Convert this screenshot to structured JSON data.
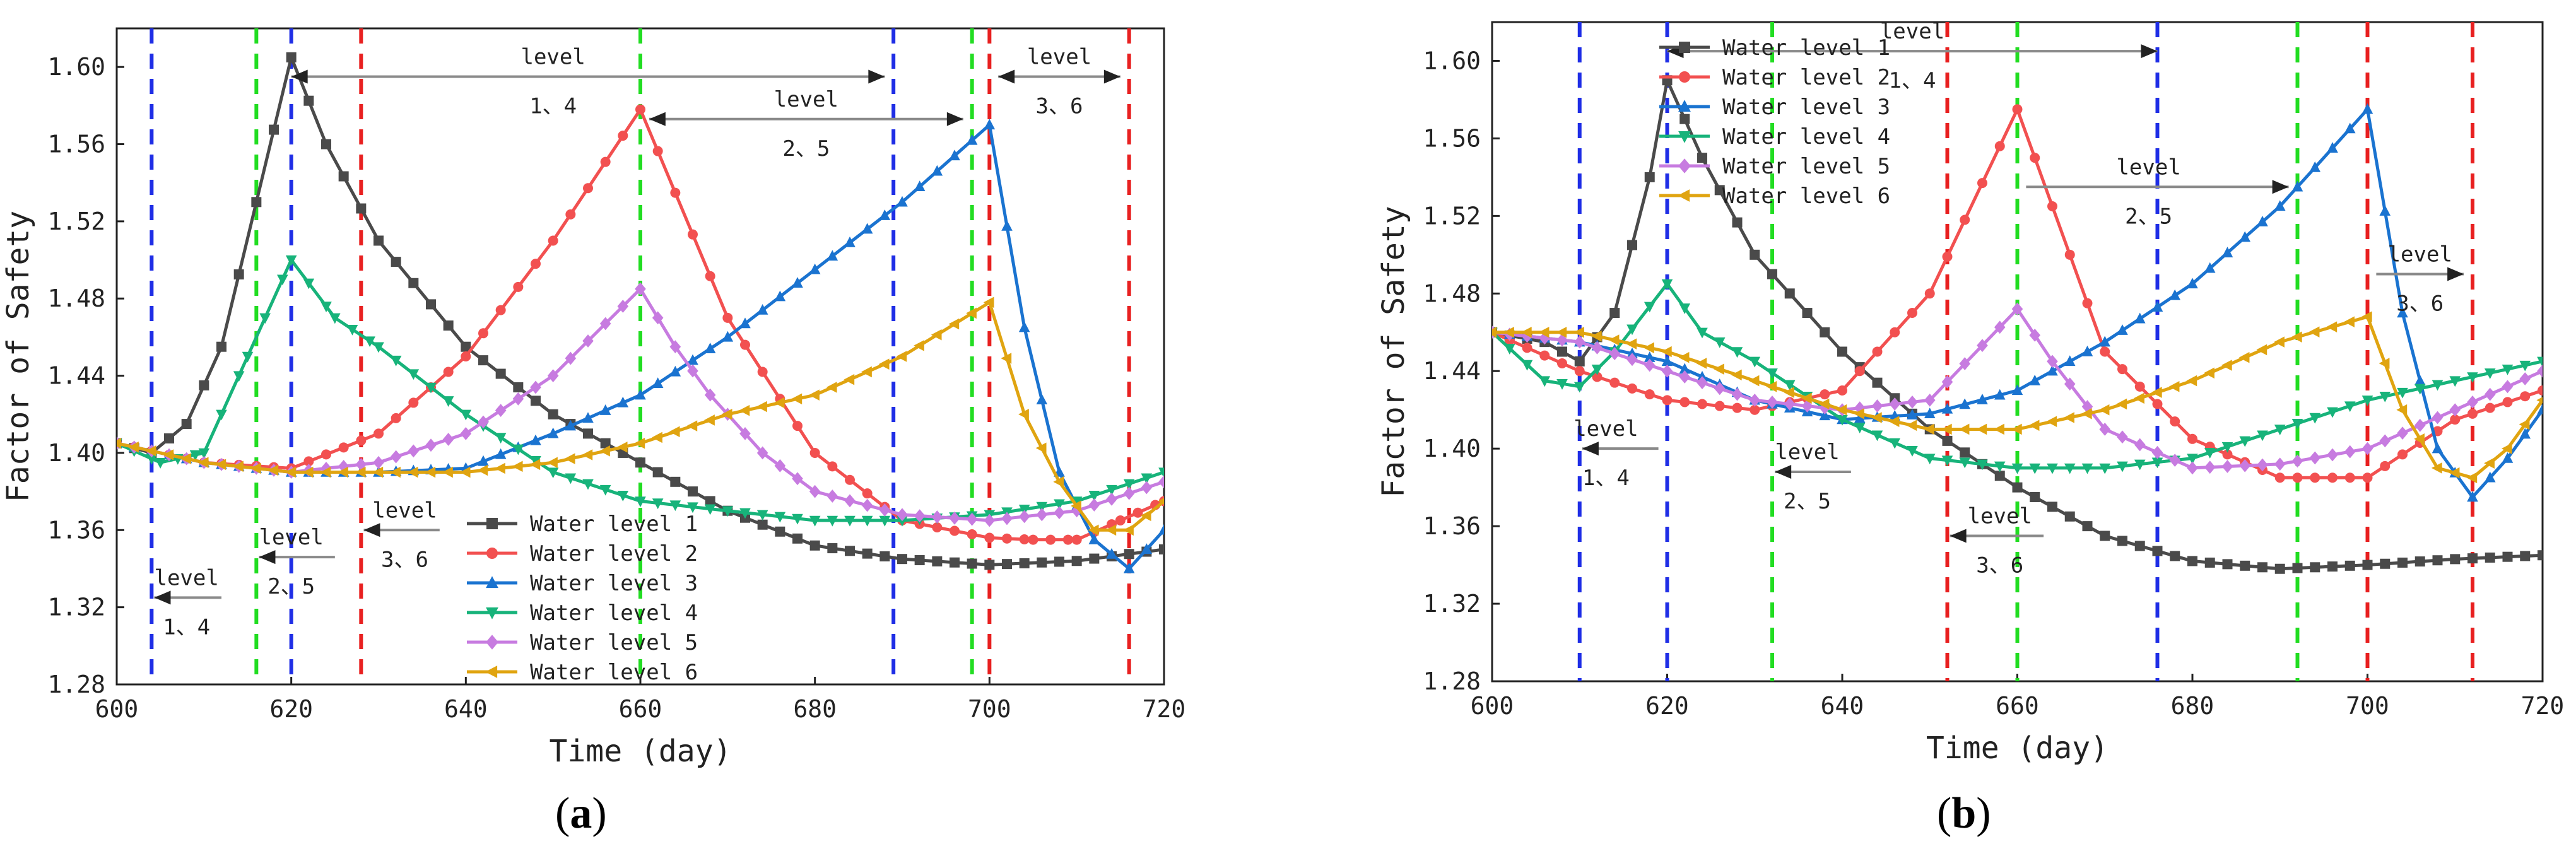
{
  "figure": {
    "panels": [
      {
        "label_open": "(",
        "label_letter": "a",
        "label_close": ")"
      },
      {
        "label_open": "(",
        "label_letter": "b",
        "label_close": ")"
      }
    ]
  },
  "colors": {
    "series": [
      "#4a4a4a",
      "#f25050",
      "#1a73d0",
      "#17b37a",
      "#c77be0",
      "#e0a410"
    ],
    "blue_dash": "#1f2ee6",
    "green_dash": "#22dd22",
    "red_dash": "#e82020",
    "arrow": "#8a8a8a"
  },
  "chart_data": [
    {
      "type": "line",
      "panel": "a",
      "xlabel": "Time (day)",
      "ylabel": "Factor of Safety",
      "xlim": [
        600,
        720
      ],
      "ylim": [
        1.28,
        1.62
      ],
      "xticks": [
        600,
        620,
        640,
        660,
        680,
        700,
        720
      ],
      "xtick_labels": [
        "600",
        "620",
        "640",
        "660",
        "680",
        "700",
        "720"
      ],
      "yticks": [
        1.28,
        1.32,
        1.36,
        1.4,
        1.44,
        1.48,
        1.52,
        1.56,
        1.6
      ],
      "ytick_labels": [
        "1.28",
        "1.32",
        "1.36",
        "1.40",
        "1.44",
        "1.48",
        "1.52",
        "1.56",
        "1.60"
      ],
      "legend_position": "bottom-right",
      "series": [
        {
          "name": "Water level 1",
          "x": [
            600,
            604,
            608,
            612,
            616,
            620,
            624,
            630,
            640,
            650,
            660,
            670,
            680,
            690,
            700,
            710,
            720
          ],
          "values": [
            1.405,
            1.4,
            1.415,
            1.455,
            1.53,
            1.605,
            1.56,
            1.51,
            1.455,
            1.42,
            1.395,
            1.37,
            1.352,
            1.345,
            1.342,
            1.344,
            1.35
          ]
        },
        {
          "name": "Water level 2",
          "x": [
            600,
            610,
            620,
            630,
            640,
            650,
            660,
            670,
            680,
            690,
            700,
            705,
            710,
            715,
            720
          ],
          "values": [
            1.405,
            1.395,
            1.392,
            1.41,
            1.45,
            1.51,
            1.578,
            1.47,
            1.4,
            1.365,
            1.356,
            1.355,
            1.355,
            1.365,
            1.375
          ]
        },
        {
          "name": "Water level 3",
          "x": [
            600,
            610,
            620,
            630,
            640,
            650,
            660,
            670,
            680,
            690,
            700,
            704,
            708,
            712,
            716,
            720
          ],
          "values": [
            1.405,
            1.395,
            1.39,
            1.39,
            1.392,
            1.41,
            1.43,
            1.46,
            1.495,
            1.53,
            1.57,
            1.465,
            1.39,
            1.355,
            1.34,
            1.36
          ]
        },
        {
          "name": "Water level 4",
          "x": [
            600,
            605,
            610,
            615,
            620,
            625,
            630,
            640,
            650,
            660,
            670,
            680,
            690,
            700,
            710,
            720
          ],
          "values": [
            1.405,
            1.395,
            1.4,
            1.45,
            1.5,
            1.47,
            1.455,
            1.42,
            1.39,
            1.375,
            1.37,
            1.365,
            1.365,
            1.368,
            1.375,
            1.39
          ]
        },
        {
          "name": "Water level 5",
          "x": [
            600,
            610,
            620,
            630,
            640,
            650,
            660,
            664,
            668,
            674,
            680,
            690,
            700,
            710,
            720
          ],
          "values": [
            1.405,
            1.395,
            1.39,
            1.395,
            1.41,
            1.44,
            1.485,
            1.455,
            1.43,
            1.4,
            1.38,
            1.368,
            1.365,
            1.37,
            1.385
          ]
        },
        {
          "name": "Water level 6",
          "x": [
            600,
            610,
            620,
            630,
            640,
            650,
            660,
            670,
            680,
            690,
            700,
            704,
            708,
            712,
            716,
            720
          ],
          "values": [
            1.405,
            1.395,
            1.39,
            1.39,
            1.39,
            1.395,
            1.405,
            1.42,
            1.43,
            1.45,
            1.478,
            1.42,
            1.385,
            1.36,
            1.36,
            1.375
          ]
        }
      ],
      "vlines": [
        {
          "x": 604,
          "color": "blue"
        },
        {
          "x": 620,
          "color": "blue"
        },
        {
          "x": 689,
          "color": "blue"
        },
        {
          "x": 616,
          "color": "green"
        },
        {
          "x": 660,
          "color": "green"
        },
        {
          "x": 698,
          "color": "green"
        },
        {
          "x": 628,
          "color": "red"
        },
        {
          "x": 700,
          "color": "red"
        },
        {
          "x": 716,
          "color": "red"
        }
      ],
      "arrows": [
        {
          "x1": 620,
          "x2": 688,
          "y": 1.595,
          "dir": "both",
          "label_top": "level",
          "label_bottom": "1、4",
          "label_x": 650
        },
        {
          "x1": 661,
          "x2": 697,
          "y": 1.573,
          "dir": "both",
          "label_top": "level",
          "label_bottom": "2、5",
          "label_x": 679
        },
        {
          "x1": 701,
          "x2": 715,
          "y": 1.595,
          "dir": "both",
          "label_top": "level",
          "label_bottom": "3、6",
          "label_x": 708
        },
        {
          "x1": 604.3,
          "x2": 612,
          "y": 1.325,
          "dir": "left",
          "label_top": "level",
          "label_bottom": "1、4",
          "label_x": 608
        },
        {
          "x1": 616.3,
          "x2": 625,
          "y": 1.346,
          "dir": "left",
          "label_top": "level",
          "label_bottom": "2、5",
          "label_x": 620
        },
        {
          "x1": 628.3,
          "x2": 637,
          "y": 1.36,
          "dir": "left",
          "label_top": "level",
          "label_bottom": "3、6",
          "label_x": 633
        }
      ]
    },
    {
      "type": "line",
      "panel": "b",
      "xlabel": "Time (day)",
      "ylabel": "Factor of Safety",
      "xlim": [
        600,
        720
      ],
      "ylim": [
        1.28,
        1.62
      ],
      "xticks": [
        600,
        620,
        640,
        660,
        680,
        700,
        720
      ],
      "xtick_labels": [
        "600",
        "620",
        "640",
        "660",
        "680",
        "700",
        "720"
      ],
      "yticks": [
        1.28,
        1.32,
        1.36,
        1.4,
        1.44,
        1.48,
        1.52,
        1.56,
        1.6
      ],
      "ytick_labels": [
        "1.28",
        "1.32",
        "1.36",
        "1.40",
        "1.44",
        "1.48",
        "1.52",
        "1.56",
        "1.60"
      ],
      "legend_position": "top-left",
      "series": [
        {
          "name": "Water level 1",
          "x": [
            600,
            606,
            610,
            614,
            618,
            620,
            624,
            630,
            640,
            650,
            660,
            670,
            680,
            690,
            700,
            710,
            720
          ],
          "values": [
            1.46,
            1.455,
            1.445,
            1.47,
            1.54,
            1.59,
            1.55,
            1.5,
            1.45,
            1.41,
            1.38,
            1.355,
            1.342,
            1.338,
            1.34,
            1.343,
            1.345
          ]
        },
        {
          "name": "Water level 2",
          "x": [
            600,
            610,
            620,
            630,
            640,
            650,
            660,
            670,
            680,
            690,
            700,
            710,
            720
          ],
          "values": [
            1.46,
            1.44,
            1.425,
            1.42,
            1.43,
            1.48,
            1.575,
            1.45,
            1.405,
            1.385,
            1.385,
            1.415,
            1.43
          ]
        },
        {
          "name": "Water level 3",
          "x": [
            600,
            610,
            620,
            630,
            640,
            650,
            660,
            670,
            680,
            690,
            700,
            704,
            708,
            712,
            716,
            720
          ],
          "values": [
            1.46,
            1.455,
            1.445,
            1.425,
            1.415,
            1.418,
            1.43,
            1.455,
            1.485,
            1.525,
            1.575,
            1.47,
            1.4,
            1.375,
            1.395,
            1.42
          ]
        },
        {
          "name": "Water level 4",
          "x": [
            600,
            606,
            610,
            614,
            620,
            624,
            630,
            640,
            650,
            660,
            670,
            680,
            690,
            700,
            710,
            720
          ],
          "values": [
            1.46,
            1.435,
            1.432,
            1.45,
            1.485,
            1.46,
            1.445,
            1.415,
            1.395,
            1.39,
            1.39,
            1.395,
            1.41,
            1.425,
            1.435,
            1.445
          ]
        },
        {
          "name": "Water level 5",
          "x": [
            600,
            610,
            620,
            630,
            640,
            650,
            660,
            664,
            670,
            680,
            690,
            700,
            710,
            720
          ],
          "values": [
            1.46,
            1.455,
            1.44,
            1.425,
            1.42,
            1.425,
            1.472,
            1.445,
            1.41,
            1.39,
            1.392,
            1.4,
            1.42,
            1.44
          ]
        },
        {
          "name": "Water level 6",
          "x": [
            600,
            610,
            620,
            630,
            640,
            650,
            660,
            670,
            680,
            690,
            700,
            704,
            708,
            712,
            716,
            720
          ],
          "values": [
            1.46,
            1.46,
            1.45,
            1.435,
            1.42,
            1.41,
            1.41,
            1.42,
            1.435,
            1.455,
            1.468,
            1.42,
            1.39,
            1.385,
            1.4,
            1.425
          ]
        }
      ],
      "vlines": [
        {
          "x": 610,
          "color": "blue"
        },
        {
          "x": 620,
          "color": "blue"
        },
        {
          "x": 676,
          "color": "blue"
        },
        {
          "x": 632,
          "color": "green"
        },
        {
          "x": 660,
          "color": "green"
        },
        {
          "x": 692,
          "color": "green"
        },
        {
          "x": 652,
          "color": "red"
        },
        {
          "x": 700,
          "color": "red"
        },
        {
          "x": 712,
          "color": "red"
        }
      ],
      "arrows": [
        {
          "x1": 620,
          "x2": 676,
          "y": 1.605,
          "dir": "both",
          "label_top": "level",
          "label_bottom": "1、4",
          "label_x": 648
        },
        {
          "x1": 661,
          "x2": 691,
          "y": 1.535,
          "dir": "right",
          "label_top": "level",
          "label_bottom": "2、5",
          "label_x": 675
        },
        {
          "x1": 701,
          "x2": 711,
          "y": 1.49,
          "dir": "right",
          "label_top": "level",
          "label_bottom": "3、6",
          "label_x": 706
        },
        {
          "x1": 610.3,
          "x2": 619,
          "y": 1.4,
          "dir": "left",
          "label_top": "level",
          "label_bottom": "1、4",
          "label_x": 613
        },
        {
          "x1": 632.3,
          "x2": 641,
          "y": 1.388,
          "dir": "left",
          "label_top": "level",
          "label_bottom": "2、5",
          "label_x": 636
        },
        {
          "x1": 652.3,
          "x2": 663,
          "y": 1.355,
          "dir": "left",
          "label_top": "level",
          "label_bottom": "3、6",
          "label_x": 658
        }
      ]
    }
  ]
}
